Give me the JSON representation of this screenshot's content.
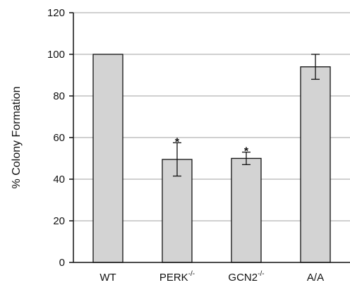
{
  "chart_data": {
    "type": "bar",
    "title": "",
    "xlabel": "",
    "ylabel": "% Colony Formation",
    "ylim": [
      0,
      120
    ],
    "yticks": [
      0,
      20,
      40,
      60,
      80,
      100,
      120
    ],
    "grid": true,
    "categories": [
      {
        "base": "WT",
        "sup": ""
      },
      {
        "base": "PERK",
        "sup": "-/-"
      },
      {
        "base": "GCN2",
        "sup": "-/-"
      },
      {
        "base": "A/A",
        "sup": ""
      }
    ],
    "values": [
      100,
      49.5,
      50,
      94
    ],
    "errors": [
      0,
      8,
      3,
      6
    ],
    "significance": [
      "",
      "*",
      "*",
      ""
    ],
    "colors": {
      "bar_fill": "#d3d3d3",
      "bar_stroke": "#111111",
      "grid": "#b5b5b5",
      "axis": "#111111"
    }
  }
}
